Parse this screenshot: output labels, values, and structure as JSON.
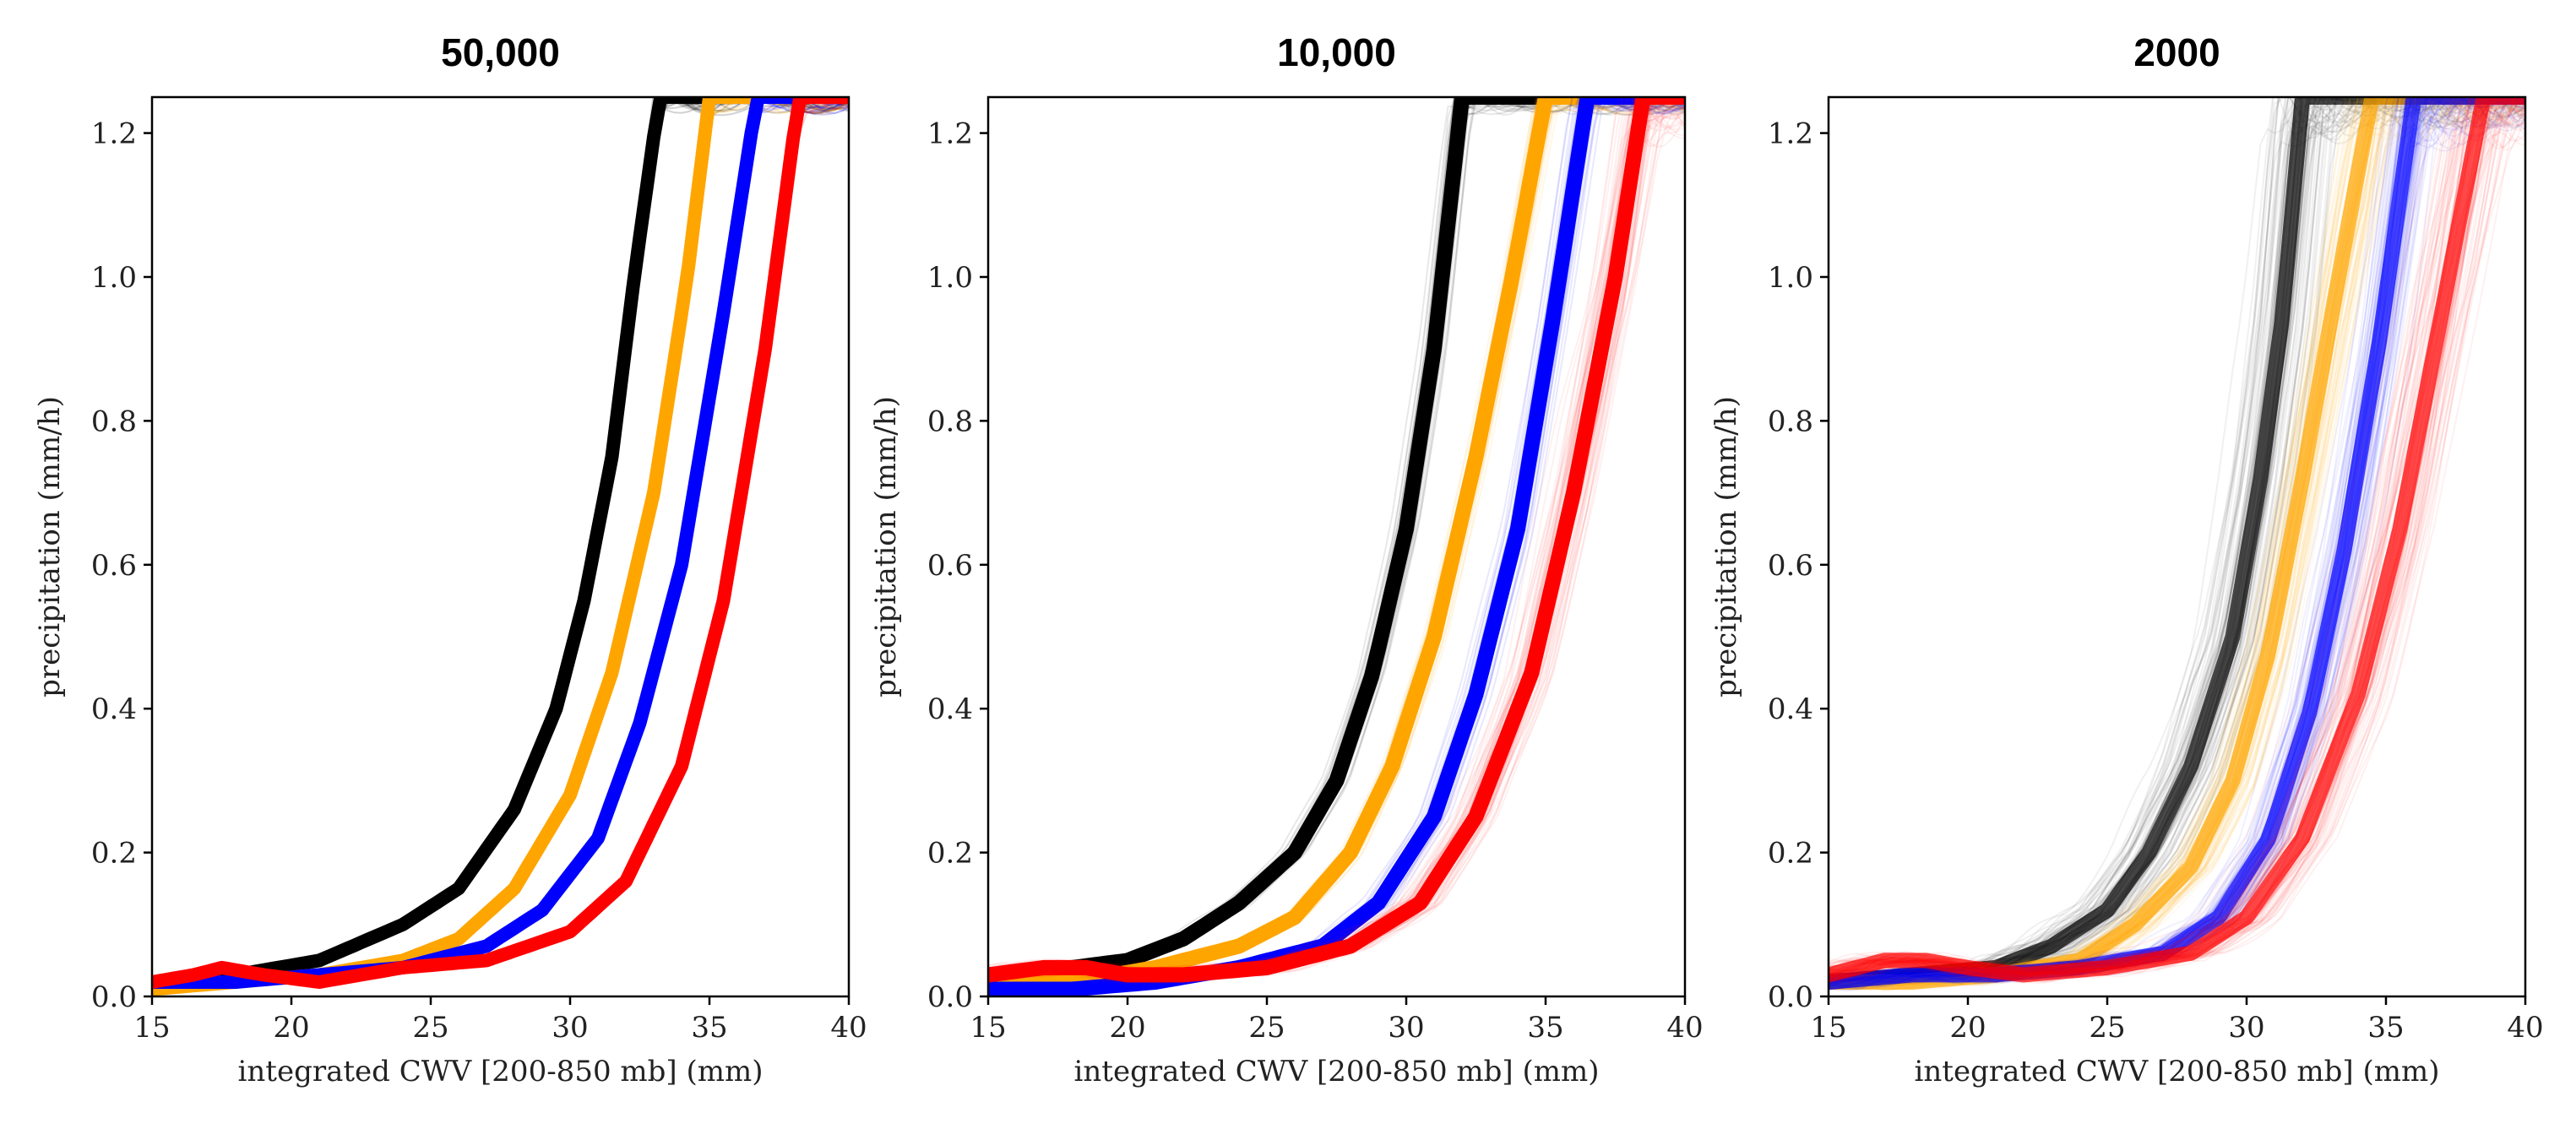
{
  "chart_data": [
    {
      "type": "line",
      "title": "50,000",
      "xlabel": "integrated CWV [200-850 mb] (mm)",
      "ylabel": "precipitation (mm/h)",
      "xlim": [
        15,
        40
      ],
      "ylim": [
        0,
        1.25
      ],
      "xticks": [
        "15",
        "20",
        "25",
        "30",
        "35",
        "40"
      ],
      "yticks": [
        "0.0",
        "0.2",
        "0.4",
        "0.6",
        "0.8",
        "1.0",
        "1.2"
      ],
      "ensemble_size": 50000,
      "series": [
        {
          "name": "black",
          "color": "#000000",
          "spread": 0.2,
          "x": [
            15,
            18,
            21,
            24,
            26,
            28,
            29.5,
            30.5,
            31.5,
            32.3,
            33.2
          ],
          "y": [
            0.02,
            0.03,
            0.05,
            0.1,
            0.15,
            0.26,
            0.4,
            0.55,
            0.75,
            1.0,
            1.25
          ]
        },
        {
          "name": "orange",
          "color": "#FFA500",
          "spread": 0.15,
          "x": [
            15,
            18,
            21,
            24,
            26,
            28,
            30,
            31.5,
            33,
            34.2,
            35
          ],
          "y": [
            0.01,
            0.02,
            0.03,
            0.05,
            0.08,
            0.15,
            0.28,
            0.45,
            0.7,
            1.0,
            1.25
          ]
        },
        {
          "name": "blue",
          "color": "#0000FF",
          "spread": 0.15,
          "x": [
            15,
            18,
            21,
            24,
            27,
            29,
            31,
            32.5,
            34,
            35.5,
            36.7
          ],
          "y": [
            0.02,
            0.02,
            0.03,
            0.04,
            0.07,
            0.12,
            0.22,
            0.38,
            0.6,
            0.95,
            1.25
          ]
        },
        {
          "name": "red",
          "color": "#FF0000",
          "spread": 0.2,
          "x": [
            15,
            16.5,
            17.5,
            19,
            21,
            24,
            27,
            30,
            32,
            34,
            35.5,
            37,
            38.2
          ],
          "y": [
            0.02,
            0.03,
            0.04,
            0.03,
            0.02,
            0.04,
            0.05,
            0.09,
            0.16,
            0.32,
            0.55,
            0.9,
            1.25
          ]
        }
      ]
    },
    {
      "type": "line",
      "title": "10,000",
      "xlabel": "integrated CWV [200-850 mb] (mm)",
      "ylabel": "precipitation (mm/h)",
      "xlim": [
        15,
        40
      ],
      "ylim": [
        0,
        1.25
      ],
      "xticks": [
        "15",
        "20",
        "25",
        "30",
        "35",
        "40"
      ],
      "yticks": [
        "0.0",
        "0.2",
        "0.4",
        "0.6",
        "0.8",
        "1.0",
        "1.2"
      ],
      "ensemble_size": 10000,
      "series": [
        {
          "name": "black",
          "color": "#000000",
          "spread": 0.5,
          "x": [
            15,
            18,
            20,
            22,
            24,
            26,
            27.5,
            28.8,
            30,
            31,
            32
          ],
          "y": [
            0.03,
            0.04,
            0.05,
            0.08,
            0.13,
            0.2,
            0.3,
            0.45,
            0.65,
            0.9,
            1.25
          ]
        },
        {
          "name": "orange",
          "color": "#FFA500",
          "spread": 0.5,
          "x": [
            15,
            18,
            21,
            24,
            26,
            28,
            29.5,
            31,
            32.5,
            33.8,
            35
          ],
          "y": [
            0.02,
            0.02,
            0.04,
            0.07,
            0.11,
            0.2,
            0.32,
            0.5,
            0.75,
            1.0,
            1.25
          ]
        },
        {
          "name": "blue",
          "color": "#0000FF",
          "spread": 0.5,
          "x": [
            15,
            18,
            21,
            24,
            27,
            29,
            31,
            32.5,
            34,
            35.3,
            36.5
          ],
          "y": [
            0.01,
            0.01,
            0.02,
            0.04,
            0.07,
            0.13,
            0.25,
            0.42,
            0.65,
            0.95,
            1.25
          ]
        },
        {
          "name": "red",
          "color": "#FF0000",
          "spread": 0.8,
          "x": [
            15,
            17,
            18.5,
            20,
            22,
            25,
            28,
            30.5,
            32.5,
            34.5,
            36,
            37.5,
            38.5
          ],
          "y": [
            0.03,
            0.04,
            0.04,
            0.03,
            0.03,
            0.04,
            0.07,
            0.13,
            0.25,
            0.45,
            0.7,
            1.0,
            1.25
          ]
        }
      ]
    },
    {
      "type": "line",
      "title": "2000",
      "xlabel": "integrated CWV [200-850 mb] (mm)",
      "ylabel": "precipitation (mm/h)",
      "xlim": [
        15,
        40
      ],
      "ylim": [
        0,
        1.25
      ],
      "xticks": [
        "15",
        "20",
        "25",
        "30",
        "35",
        "40"
      ],
      "yticks": [
        "0.0",
        "0.2",
        "0.4",
        "0.6",
        "0.8",
        "1.0",
        "1.2"
      ],
      "ensemble_size": 2000,
      "series": [
        {
          "name": "black",
          "color": "#000000",
          "spread": 1.4,
          "x": [
            15,
            18,
            21,
            23,
            25,
            26.5,
            28,
            29.5,
            30.5,
            31.3,
            32
          ],
          "y": [
            0.02,
            0.03,
            0.04,
            0.07,
            0.12,
            0.2,
            0.32,
            0.5,
            0.72,
            0.95,
            1.25
          ]
        },
        {
          "name": "orange",
          "color": "#FFA500",
          "spread": 1.0,
          "x": [
            15,
            18,
            21,
            24,
            26,
            28,
            29.5,
            30.8,
            32,
            33.3,
            34.5
          ],
          "y": [
            0.02,
            0.02,
            0.03,
            0.05,
            0.1,
            0.18,
            0.3,
            0.48,
            0.72,
            1.0,
            1.25
          ]
        },
        {
          "name": "blue",
          "color": "#0000FF",
          "spread": 1.0,
          "x": [
            15,
            18,
            21,
            24,
            27,
            29,
            30.8,
            32.3,
            33.5,
            34.8,
            36
          ],
          "y": [
            0.02,
            0.03,
            0.03,
            0.04,
            0.06,
            0.11,
            0.22,
            0.4,
            0.62,
            0.92,
            1.25
          ]
        },
        {
          "name": "red",
          "color": "#FF0000",
          "spread": 1.6,
          "x": [
            15,
            17,
            18.5,
            20,
            22,
            25,
            28,
            30,
            32,
            34,
            35.5,
            37,
            38.5
          ],
          "y": [
            0.03,
            0.05,
            0.05,
            0.04,
            0.03,
            0.04,
            0.06,
            0.11,
            0.22,
            0.42,
            0.65,
            0.95,
            1.25
          ]
        }
      ]
    }
  ]
}
